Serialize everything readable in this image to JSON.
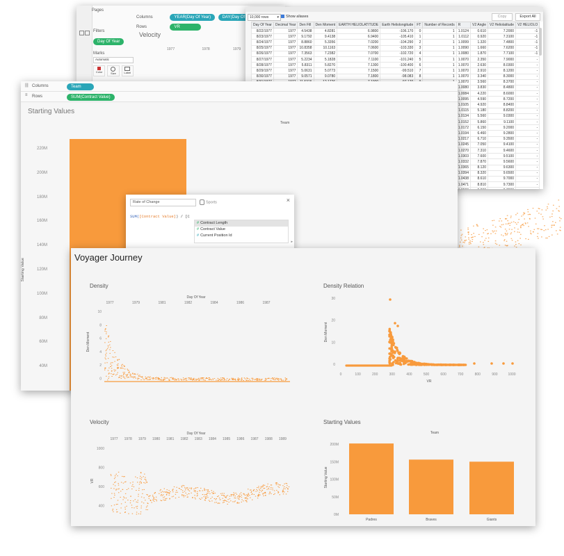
{
  "win_top": {
    "pages_label": "Pages",
    "columns_label": "Columns",
    "rows_label": "Rows",
    "col_pill1": "YEAR(Day Of Year)",
    "col_pill2": "DAY(Day Of Year)",
    "row_pill": "VR",
    "filters_label": "Filters",
    "filter_pill": "Day Of Year",
    "marks_label": "Marks",
    "marks_type": "Automatic",
    "marks_buttons": [
      "Color",
      "Size",
      "Label"
    ],
    "sheet_title": "Velocity",
    "years": [
      "1977",
      "1978",
      "1979"
    ]
  },
  "data_window": {
    "rows_select": "10,000 rows",
    "show_aliases": "Show aliases",
    "copy_button": "Copy",
    "export_button": "Export All",
    "headers": [
      "Day Of Year",
      "Decimal Year",
      "Den Fill",
      "Den Moment",
      "EARTH HELIOLATITUDE",
      "Earth Heliolongitude",
      "FT",
      "Number of Records",
      "R",
      "V2 Angle",
      "V2 Heliolatitude",
      "V2 HELIOLO"
    ],
    "rows": [
      [
        "8/22/1977",
        "1977",
        "4.5438",
        "4.8281",
        "6.9800",
        "-106.170",
        "0",
        "1",
        "1.0124",
        "0.610",
        "7.2000",
        "-1"
      ],
      [
        "8/23/1977",
        "1977",
        "9.1792",
        "9.4138",
        "6.9400",
        "-105.410",
        "1",
        "1",
        "1.0112",
        "0.920",
        "7.3100",
        "-1"
      ],
      [
        "8/24/1977",
        "1977",
        "8.8860",
        "5.3356",
        "7.0200",
        "-104.290",
        "2",
        "1",
        "1.0099",
        "1.320",
        "7.4800",
        "-1"
      ],
      [
        "8/25/1977",
        "1977",
        "10.8358",
        "10.1163",
        "7.0600",
        "-103.330",
        "3",
        "1",
        "1.0090",
        "1.660",
        "7.6200",
        "-1"
      ],
      [
        "8/26/1977",
        "1977",
        "7.3563",
        "7.2382",
        "7.0700",
        "-102.720",
        "4",
        "1",
        "1.0080",
        "1.870",
        "7.7100",
        "-1"
      ],
      [
        "8/27/1977",
        "1977",
        "5.2234",
        "5.1828",
        "7.1100",
        "-101.240",
        "5",
        "1",
        "1.0070",
        "2.350",
        "7.9000",
        "-"
      ],
      [
        "8/28/1977",
        "1977",
        "5.8311",
        "5.8270",
        "7.1300",
        "-100.400",
        "6",
        "1",
        "1.0070",
        "2.630",
        "8.0300",
        "-"
      ],
      [
        "8/29/1977",
        "1977",
        "5.0631",
        "5.0773",
        "7.1500",
        "-99.510",
        "7",
        "1",
        "1.0070",
        "2.910",
        "8.1200",
        "-"
      ],
      [
        "8/30/1977",
        "1977",
        "9.0571",
        "9.0780",
        "7.1800",
        "-98.083",
        "8",
        "1",
        "1.0070",
        "3.340",
        "8.3000",
        "-"
      ],
      [
        "8/31/1977",
        "1977",
        "11.5315",
        "12.1726",
        "7.1900",
        "-97.170",
        "9",
        "1",
        "1.0070",
        "3.560",
        "8.3700",
        "-"
      ],
      [
        "9/1/1977",
        "1977",
        "18.3311",
        "18.0362",
        "7.2000",
        "-96.190",
        "10",
        "1",
        "1.0080",
        "3.830",
        "8.4800",
        "-"
      ]
    ],
    "partial_rows": [
      [
        "1.0084",
        "4.220",
        "8.6000"
      ],
      [
        "1.0095",
        "4.590",
        "8.7200"
      ],
      [
        "1.0105",
        "4.920",
        "8.8400"
      ],
      [
        "1.0115",
        "5.180",
        "8.8200"
      ],
      [
        "1.0134",
        "5.560",
        "9.0300"
      ],
      [
        "1.0152",
        "5.860",
        "9.1100"
      ],
      [
        "1.0172",
        "6.150",
        "9.2000"
      ],
      [
        "1.0194",
        "6.460",
        "9.2800"
      ],
      [
        "1.0217",
        "6.710",
        "9.3500"
      ],
      [
        "1.0245",
        "7.050",
        "9.4100"
      ],
      [
        "1.0270",
        "7.310",
        "9.4600"
      ],
      [
        "1.0303",
        "7.600",
        "9.5100"
      ],
      [
        "1.0332",
        "7.870",
        "9.5600"
      ],
      [
        "1.0365",
        "8.120",
        "9.6300"
      ],
      [
        "1.0394",
        "8.320",
        "9.6500"
      ],
      [
        "1.0438",
        "8.610",
        "9.7000"
      ],
      [
        "1.0471",
        "8.810",
        "9.7300"
      ],
      [
        "1.0520",
        "9.090",
        "9.7800"
      ],
      [
        "1.0554",
        "9.270",
        "9.8000"
      ]
    ]
  },
  "win_mid": {
    "columns_label": "Columns",
    "rows_label": "Rows",
    "col_pill": "Team",
    "row_pill": "SUM(Contract Value)",
    "title": "Starting Values",
    "header": "Team",
    "yaxis_label": "Starting Value",
    "yticks": [
      "220M",
      "200M",
      "180M",
      "160M",
      "140M",
      "120M",
      "100M",
      "80M",
      "60M",
      "40M"
    ]
  },
  "calc_dialog": {
    "name_value": "Rate of Change",
    "source_label": "Sports",
    "formula_prefix": "SUM(",
    "formula_field": "[Contract Value]",
    "formula_suffix": ") / [C",
    "suggestions": [
      "Contract Length",
      "Contract Value",
      "Current Position Id"
    ]
  },
  "dashboard": {
    "title": "Voyager Journey",
    "panels": {
      "density": {
        "title": "Density",
        "top_header": "Day Of Year",
        "x_years": [
          "1977",
          "1979",
          "1981",
          "1982",
          "1984",
          "1986",
          "1987"
        ],
        "yaxis_label": "Den Moment",
        "yticks": [
          "10",
          "8",
          "6",
          "4",
          "2",
          "0"
        ]
      },
      "density_relation": {
        "title": "Density Relation",
        "yaxis_label": "Den Moment",
        "xaxis_label": "VR",
        "yticks": [
          "30",
          "20",
          "10",
          "0"
        ],
        "xticks": [
          "0",
          "100",
          "200",
          "300",
          "400",
          "500",
          "600",
          "700",
          "800",
          "900",
          "1000"
        ]
      },
      "velocity": {
        "title": "Velocity",
        "top_header": "Day Of Year",
        "x_years": [
          "1977",
          "1978",
          "1979",
          "1980",
          "1981",
          "1982",
          "1983",
          "1984",
          "1985",
          "1986",
          "1987",
          "1988",
          "1989"
        ],
        "yaxis_label": "VR",
        "yticks": [
          "1000",
          "800",
          "600",
          "400"
        ]
      },
      "starting_values": {
        "title": "Starting Values",
        "header": "Team",
        "yaxis_label": "Starting Value"
      }
    }
  },
  "chart_data": {
    "type": "bar",
    "title": "Starting Values",
    "xlabel": "Team",
    "ylabel": "Starting Value",
    "categories": [
      "Padres",
      "Braves",
      "Giants"
    ],
    "values": [
      202,
      156,
      150
    ],
    "yticks": [
      "0M",
      "50M",
      "100M",
      "150M",
      "200M"
    ],
    "ylim": [
      0,
      220
    ],
    "color": "#f89a3c"
  },
  "colors": {
    "accent": "#f89a3c",
    "pill_green": "#2db36a",
    "pill_teal": "#2aa6b8"
  }
}
